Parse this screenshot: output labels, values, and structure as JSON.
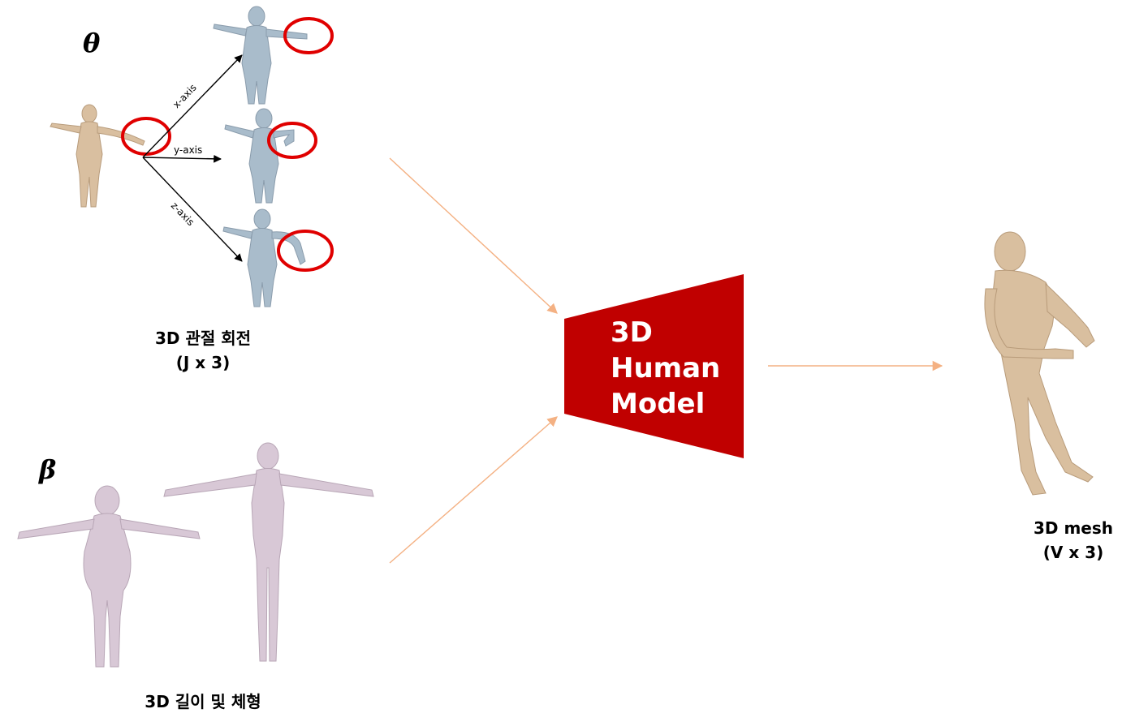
{
  "symbols": {
    "theta": "θ",
    "beta": "β"
  },
  "pose": {
    "axes": {
      "x": "x-axis",
      "y": "y-axis",
      "z": "z-axis"
    },
    "label_line1": "3D 관절 회전",
    "label_line2": "(J x 3)"
  },
  "shape": {
    "label": "3D 길이 및 체형"
  },
  "model": {
    "line1": "3D",
    "line2": "Human",
    "line3": "Model"
  },
  "output": {
    "label_line1": "3D mesh",
    "label_line2": "(V x 3)"
  },
  "colors": {
    "model_fill": "#c00000",
    "arrow": "#f4b183",
    "circle": "#e00000",
    "pose_figure": "#d9bfa0",
    "rotated_figure": "#a9bccb",
    "shape_figure": "#d8c8d6",
    "mesh_figure": "#d9bf9f"
  }
}
